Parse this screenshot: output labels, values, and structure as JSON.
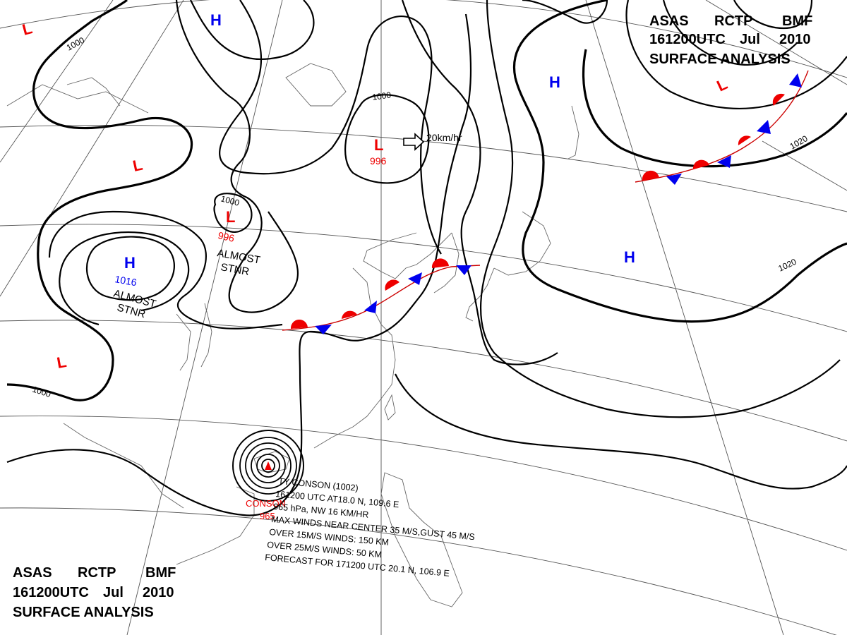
{
  "header_top": {
    "line1": [
      "ASAS",
      "RCTP",
      "BMF"
    ],
    "line2": [
      "161200UTC",
      "Jul",
      "2010"
    ],
    "line3": "SURFACE ANALYSIS"
  },
  "header_bottom": {
    "line1": [
      "ASAS",
      "RCTP",
      "BMF"
    ],
    "line2": [
      "161200UTC",
      "Jul",
      "2010"
    ],
    "line3": "SURFACE ANALYSIS"
  },
  "isobar_labels": [
    "1000",
    "1000",
    "1000",
    "1000",
    "1020",
    "1020"
  ],
  "pressure_centers": [
    {
      "type": "L",
      "value": ""
    },
    {
      "type": "H",
      "value": ""
    },
    {
      "type": "L",
      "value": ""
    },
    {
      "type": "L",
      "value": "996"
    },
    {
      "type": "L",
      "value": "996"
    },
    {
      "type": "H",
      "value": "1016"
    },
    {
      "type": "L",
      "value": ""
    },
    {
      "type": "H",
      "value": ""
    },
    {
      "type": "L",
      "value": ""
    },
    {
      "type": "H",
      "value": ""
    }
  ],
  "motion_vector": "20km/hr",
  "stationary_labels": [
    {
      "line1": "ALMOST",
      "line2": "STNR"
    },
    {
      "line1": "ALMOST",
      "line2": "STNR"
    }
  ],
  "typhoon": {
    "name_label": "CONSON",
    "pressure_label": "965",
    "info_lines": [
      "TY  CONSON  (1002)",
      "161200 UTC  AT18.0 N, 109.6 E",
      "965 hPa, NW  16 KM/HR",
      "MAX WINDS NEAR CENTER 35 M/S,GUST 45 M/S",
      "OVER 15M/S WINDS: 150 KM",
      "OVER 25M/S WINDS: 50 KM",
      "FORECAST FOR 171200 UTC 20.1 N, 106.9 E"
    ]
  },
  "colors": {
    "high": "#0000ee",
    "low": "#ee0000",
    "isobar": "#000000",
    "coast": "#666666"
  }
}
